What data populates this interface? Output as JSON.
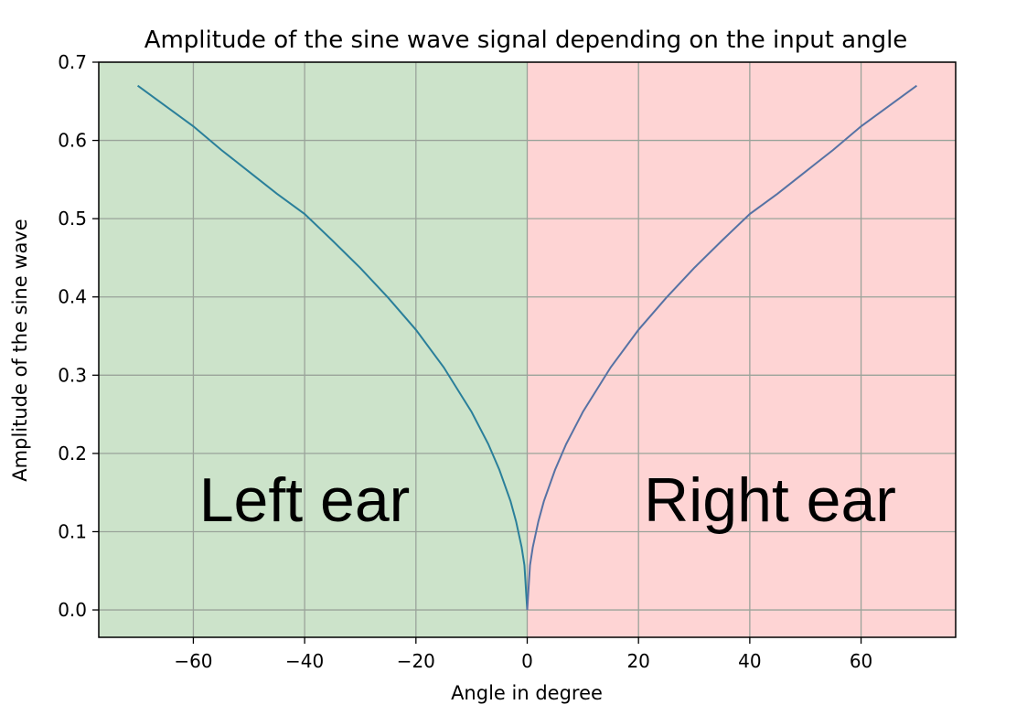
{
  "chart_data": {
    "type": "line",
    "title": "Amplitude of the sine wave signal depending on the input angle",
    "xlabel": "Angle in degree",
    "ylabel": "Amplitude of the sine wave",
    "xlim": [
      -77,
      77
    ],
    "ylim": [
      -0.035,
      0.7
    ],
    "xticks": [
      -60,
      -40,
      -20,
      0,
      20,
      40,
      60
    ],
    "xtick_labels": [
      "−60",
      "−40",
      "−20",
      "0",
      "20",
      "40",
      "60"
    ],
    "yticks": [
      0.0,
      0.1,
      0.2,
      0.3,
      0.4,
      0.5,
      0.6,
      0.7
    ],
    "ytick_labels": [
      "0.0",
      "0.1",
      "0.2",
      "0.3",
      "0.4",
      "0.5",
      "0.6",
      "0.7"
    ],
    "grid": true,
    "regions": [
      {
        "label": "Left ear",
        "x_range": [
          -77,
          0
        ],
        "color": "#cce3ca"
      },
      {
        "label": "Right ear",
        "x_range": [
          0,
          77
        ],
        "color": "#fed4d4"
      }
    ],
    "series": [
      {
        "color": "#2a7f9a",
        "x": [
          -70,
          -65,
          -60,
          -55,
          -50,
          -45,
          -40,
          -35,
          -30,
          -25,
          -20,
          -15,
          -10,
          -7,
          -5,
          -3,
          -2,
          -1,
          -0.5,
          0
        ],
        "y": [
          0.67,
          0.644,
          0.618,
          0.588,
          0.56,
          0.532,
          0.506,
          0.472,
          0.437,
          0.399,
          0.358,
          0.31,
          0.253,
          0.212,
          0.179,
          0.139,
          0.113,
          0.08,
          0.057,
          0.0
        ]
      },
      {
        "color": "#5672a4",
        "x": [
          0,
          0.5,
          1,
          2,
          3,
          5,
          7,
          10,
          15,
          20,
          25,
          30,
          35,
          40,
          45,
          50,
          55,
          60,
          65,
          70
        ],
        "y": [
          0.0,
          0.057,
          0.08,
          0.113,
          0.139,
          0.179,
          0.212,
          0.253,
          0.31,
          0.358,
          0.399,
          0.437,
          0.472,
          0.506,
          0.532,
          0.56,
          0.588,
          0.618,
          0.644,
          0.67
        ]
      }
    ]
  }
}
